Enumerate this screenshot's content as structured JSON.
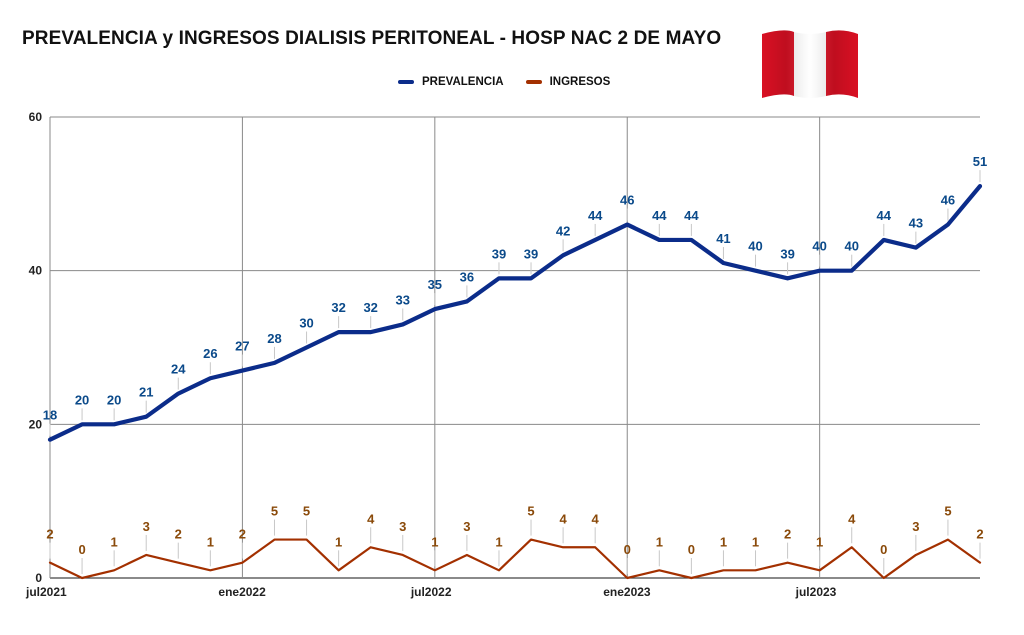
{
  "title": "PREVALENCIA y INGRESOS DIALISIS PERITONEAL - HOSP NAC 2 DE MAYO",
  "legend": {
    "series1": "PREVALENCIA",
    "series2": "INGRESOS"
  },
  "flag": {
    "name": "peru-flag-icon",
    "colors": [
      "#d91023",
      "#ffffff",
      "#d91023"
    ]
  },
  "colors": {
    "prevalencia": "#0b2c8a",
    "ingresos": "#a33000",
    "prevalencia_label": "#0b4a8a",
    "ingresos_label": "#8a4a0a",
    "grid": "#8a8a8a"
  },
  "chart_data": {
    "type": "line",
    "title": "PREVALENCIA y INGRESOS DIALISIS PERITONEAL - HOSP NAC 2 DE MAYO",
    "xlabel": "",
    "ylabel": "",
    "ylim": [
      0,
      60
    ],
    "yticks": [
      0,
      20,
      40,
      60
    ],
    "x": [
      "2021-07",
      "2021-08",
      "2021-09",
      "2021-10",
      "2021-11",
      "2021-12",
      "2022-01",
      "2022-02",
      "2022-03",
      "2022-04",
      "2022-05",
      "2022-06",
      "2022-07",
      "2022-08",
      "2022-09",
      "2022-10",
      "2022-11",
      "2022-12",
      "2023-01",
      "2023-02",
      "2023-03",
      "2023-04",
      "2023-05",
      "2023-06",
      "2023-07",
      "2023-08",
      "2023-09",
      "2023-10",
      "2023-11",
      "2023-12"
    ],
    "xticks": [
      {
        "label": "jul2021",
        "index": 0
      },
      {
        "label": "ene2022",
        "index": 6
      },
      {
        "label": "jul2022",
        "index": 12
      },
      {
        "label": "ene2023",
        "index": 18
      },
      {
        "label": "jul2023",
        "index": 24
      }
    ],
    "grid": true,
    "legend_position": "top-center",
    "series": [
      {
        "name": "PREVALENCIA",
        "color": "#0b2c8a",
        "values": [
          18,
          20,
          20,
          21,
          24,
          26,
          27,
          28,
          30,
          32,
          32,
          33,
          35,
          36,
          39,
          39,
          42,
          44,
          46,
          44,
          44,
          41,
          40,
          39,
          40,
          40,
          44,
          43,
          46,
          51
        ]
      },
      {
        "name": "INGRESOS",
        "color": "#a33000",
        "values": [
          2,
          0,
          1,
          3,
          2,
          1,
          2,
          5,
          5,
          1,
          4,
          3,
          1,
          3,
          1,
          5,
          4,
          4,
          0,
          1,
          0,
          1,
          1,
          2,
          1,
          4,
          0,
          3,
          5,
          2
        ]
      }
    ]
  }
}
